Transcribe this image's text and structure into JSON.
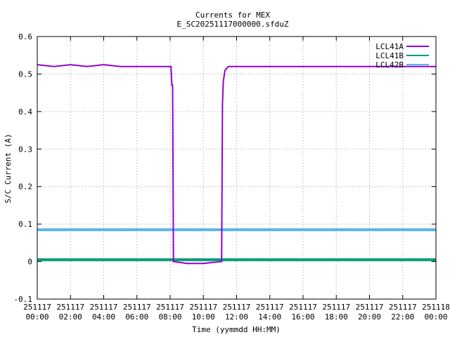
{
  "chart_data": {
    "type": "line",
    "title": "Currents for MEX",
    "subtitle": "E_SC20251117000000.sfduZ",
    "xlabel": "Time (yymmdd HH:MM)",
    "ylabel": "S/C Current (A)",
    "xlim": [
      0,
      24
    ],
    "ylim": [
      -0.1,
      0.6
    ],
    "grid": true,
    "legend_position": "top-right",
    "x_ticks": [
      {
        "x": 0,
        "date": "251117",
        "time": "00:00"
      },
      {
        "x": 2,
        "date": "251117",
        "time": "02:00"
      },
      {
        "x": 4,
        "date": "251117",
        "time": "04:00"
      },
      {
        "x": 6,
        "date": "251117",
        "time": "06:00"
      },
      {
        "x": 8,
        "date": "251117",
        "time": "08:00"
      },
      {
        "x": 10,
        "date": "251117",
        "time": "10:00"
      },
      {
        "x": 12,
        "date": "251117",
        "time": "12:00"
      },
      {
        "x": 14,
        "date": "251117",
        "time": "14:00"
      },
      {
        "x": 16,
        "date": "251117",
        "time": "16:00"
      },
      {
        "x": 18,
        "date": "251117",
        "time": "18:00"
      },
      {
        "x": 20,
        "date": "251117",
        "time": "20:00"
      },
      {
        "x": 22,
        "date": "251117",
        "time": "22:00"
      },
      {
        "x": 24,
        "date": "251118",
        "time": "00:00"
      }
    ],
    "y_ticks": [
      {
        "v": -0.1,
        "label": "-0.1"
      },
      {
        "v": 0,
        "label": "0"
      },
      {
        "v": 0.1,
        "label": "0.1"
      },
      {
        "v": 0.2,
        "label": "0.2"
      },
      {
        "v": 0.3,
        "label": "0.3"
      },
      {
        "v": 0.4,
        "label": "0.4"
      },
      {
        "v": 0.5,
        "label": "0.5"
      },
      {
        "v": 0.6,
        "label": "0.6"
      }
    ],
    "series": [
      {
        "name": "LCL41A",
        "color": "#9400d3",
        "x": [
          0,
          1,
          2,
          3,
          4,
          5,
          6,
          7,
          8.05,
          8.1,
          8.15,
          8.2,
          8.25,
          9,
          10,
          11,
          11.1,
          11.15,
          11.2,
          11.3,
          11.5,
          12,
          14,
          16,
          18,
          20,
          22,
          24
        ],
        "y": [
          0.525,
          0.52,
          0.525,
          0.52,
          0.525,
          0.52,
          0.52,
          0.52,
          0.52,
          0.47,
          0.47,
          0.0,
          0.0,
          -0.005,
          -0.005,
          0.0,
          0.0,
          0.42,
          0.48,
          0.51,
          0.52,
          0.52,
          0.52,
          0.52,
          0.52,
          0.52,
          0.52,
          0.52
        ]
      },
      {
        "name": "LCL41B",
        "color": "#009e73",
        "x": [
          0,
          4,
          8,
          12,
          16,
          20,
          24
        ],
        "y": [
          0.005,
          0.005,
          0.005,
          0.005,
          0.005,
          0.005,
          0.005
        ]
      },
      {
        "name": "LCL42B",
        "color": "#56b4e9",
        "x": [
          0,
          4,
          8,
          12,
          16,
          20,
          24
        ],
        "y": [
          0.085,
          0.085,
          0.085,
          0.085,
          0.085,
          0.085,
          0.085
        ]
      }
    ]
  }
}
